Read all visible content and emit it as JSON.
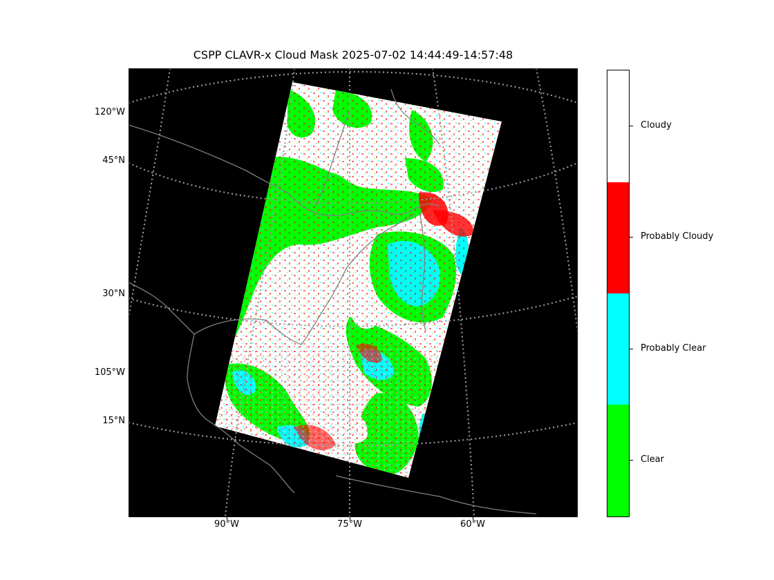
{
  "title": "CSPP CLAVR-x Cloud Mask 2025-07-02 14:44:49-14:57:48",
  "map": {
    "background": "#000000",
    "coastline_color": "#808080",
    "gridline_color": "#999999",
    "lat_labels": [
      "45°N",
      "30°N",
      "15°N"
    ],
    "lon_labels_left": [
      "120°W",
      "105°W"
    ],
    "lon_labels_bottom": [
      "90°W",
      "75°W",
      "60°W"
    ]
  },
  "colorbar": {
    "categories": [
      {
        "label": "Cloudy",
        "color": "#ffffff"
      },
      {
        "label": "Probably Cloudy",
        "color": "#ff0000"
      },
      {
        "label": "Probably Clear",
        "color": "#00ffff"
      },
      {
        "label": "Clear",
        "color": "#00ff00"
      }
    ]
  }
}
